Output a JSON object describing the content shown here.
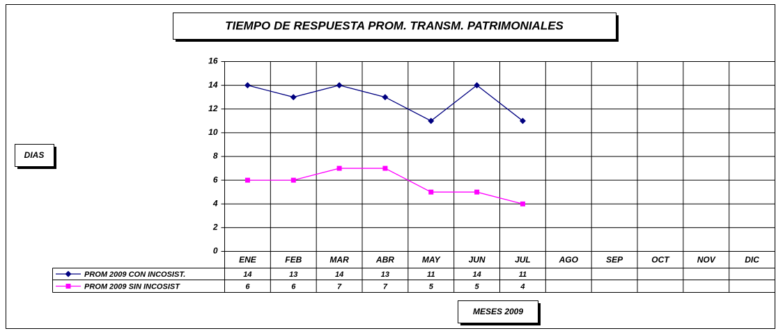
{
  "chart_data": {
    "type": "line",
    "title": "TIEMPO DE RESPUESTA PROM. TRANSM. PATRIMONIALES",
    "y_label": "DIAS",
    "x_label": "MESES 2009",
    "categories": [
      "ENE",
      "FEB",
      "MAR",
      "ABR",
      "MAY",
      "JUN",
      "JUL",
      "AGO",
      "SEP",
      "OCT",
      "NOV",
      "DIC"
    ],
    "series": [
      {
        "name": "PROM 2009 CON INCOSIST.",
        "color": "#000080",
        "marker": "diamond",
        "values": [
          14,
          13,
          14,
          13,
          11,
          14,
          11,
          null,
          null,
          null,
          null,
          null
        ]
      },
      {
        "name": "PROM 2009 SIN INCOSIST",
        "color": "#ff00ff",
        "marker": "square",
        "values": [
          6,
          6,
          7,
          7,
          5,
          5,
          4,
          null,
          null,
          null,
          null,
          null
        ]
      }
    ],
    "ylim": [
      0,
      16
    ],
    "yticks": [
      0,
      2,
      4,
      6,
      8,
      10,
      12,
      14,
      16
    ],
    "grid": true,
    "data_table": true
  }
}
